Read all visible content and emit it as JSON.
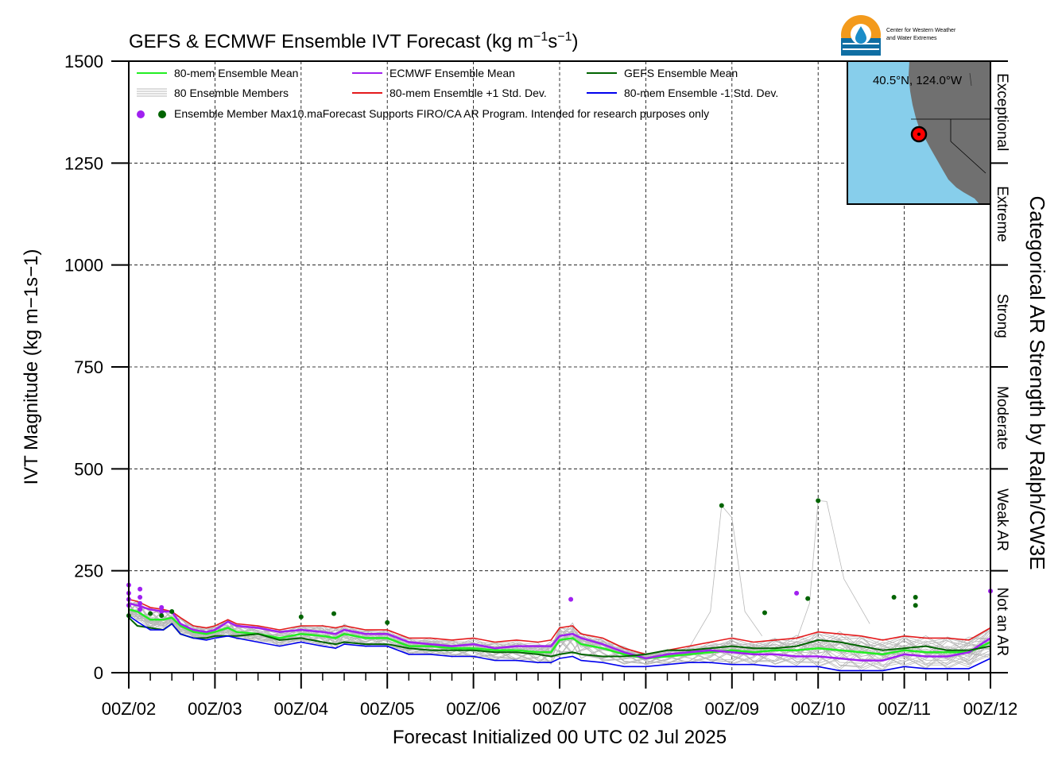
{
  "title_prefix": "GEFS & ECMWF Ensemble IVT Forecast (kg m",
  "title_exp1": "−1",
  "title_mid": "s",
  "title_exp2": "−1",
  "title_suffix": ")",
  "logo_line1": "Center for Western Weather",
  "logo_line2": "and Water Extremes",
  "map_label": "40.5°N, 124.0°W",
  "colors": {
    "ensemble_mean": "#22ee22",
    "ecmwf_mean": "#a020f0",
    "gefs_mean": "#006400",
    "plus_std": "#e41a1c",
    "minus_std": "#0000ee",
    "members": "#b8b8b8",
    "ocean": "#87ceeb",
    "land": "#707070"
  },
  "legend": {
    "ensemble_mean": "80-mem Ensemble Mean",
    "ecmwf_mean": "ECMWF Ensemble Mean",
    "gefs_mean": "GEFS Ensemble Mean",
    "members": "80 Ensemble Members",
    "plus_std": "80-mem Ensemble +1 Std. Dev.",
    "minus_std": "80-mem Ensemble -1 Std. Dev.",
    "max_points": "Ensemble Member Max10.maForecast Supports FIRO/CA AR Program. Intended for research purposes only"
  },
  "categories": [
    "Exceptional",
    "Extreme",
    "Strong",
    "Moderate",
    "Weak AR",
    "Not an AR"
  ],
  "chart_data": {
    "type": "line",
    "title": "GEFS & ECMWF Ensemble IVT Forecast (kg m−1s−1)",
    "xlabel": "Forecast Initialized 00 UTC 02 Jul 2025",
    "ylabel": "IVT Magnitude (kg m−1s−1)",
    "right_label": "Categorical AR Strength by Ralph/CW3E",
    "ylim": [
      0,
      1500
    ],
    "yticks": [
      "0",
      "250",
      "500",
      "750",
      "1000",
      "1250",
      "1500"
    ],
    "xticks": [
      "00Z/02",
      "00Z/03",
      "00Z/04",
      "00Z/05",
      "00Z/06",
      "00Z/07",
      "00Z/08",
      "00Z/09",
      "00Z/10",
      "00Z/11",
      "00Z/12"
    ],
    "x_unit": "day of July 2025 (fractional)",
    "grid": true,
    "series": [
      {
        "name": "80-mem Ensemble +1 Std. Dev.",
        "x": [
          2.0,
          2.1,
          2.25,
          2.4,
          2.5,
          2.6,
          2.75,
          2.9,
          3.0,
          3.15,
          3.25,
          3.5,
          3.75,
          4.0,
          4.25,
          4.4,
          4.5,
          4.75,
          5.0,
          5.25,
          5.5,
          5.75,
          6.0,
          6.25,
          6.5,
          6.75,
          6.9,
          7.0,
          7.15,
          7.25,
          7.5,
          7.75,
          8.0,
          8.25,
          8.5,
          8.75,
          9.0,
          9.25,
          9.5,
          9.75,
          10.0,
          10.25,
          10.5,
          10.75,
          11.0,
          11.25,
          11.5,
          11.75,
          12.0
        ],
        "values": [
          180,
          175,
          160,
          155,
          150,
          135,
          115,
          110,
          115,
          130,
          120,
          115,
          105,
          115,
          115,
          110,
          115,
          105,
          105,
          85,
          85,
          80,
          85,
          75,
          80,
          75,
          80,
          110,
          115,
          95,
          85,
          60,
          45,
          55,
          65,
          75,
          85,
          75,
          80,
          85,
          100,
          95,
          90,
          80,
          90,
          85,
          85,
          80,
          110
        ]
      },
      {
        "name": "80-mem Ensemble Mean",
        "x": [
          2.0,
          2.1,
          2.25,
          2.4,
          2.5,
          2.6,
          2.75,
          2.9,
          3.0,
          3.15,
          3.25,
          3.5,
          3.75,
          4.0,
          4.25,
          4.4,
          4.5,
          4.75,
          5.0,
          5.25,
          5.5,
          5.75,
          6.0,
          6.25,
          6.5,
          6.75,
          6.9,
          7.0,
          7.15,
          7.25,
          7.5,
          7.75,
          8.0,
          8.25,
          8.5,
          8.75,
          9.0,
          9.25,
          9.5,
          9.75,
          10.0,
          10.25,
          10.5,
          10.75,
          11.0,
          11.25,
          11.5,
          11.75,
          12.0
        ],
        "values": [
          155,
          150,
          130,
          130,
          135,
          115,
          100,
          95,
          100,
          110,
          100,
          95,
          85,
          95,
          90,
          85,
          95,
          85,
          85,
          65,
          65,
          60,
          60,
          55,
          55,
          50,
          50,
          80,
          85,
          70,
          60,
          45,
          35,
          40,
          45,
          50,
          55,
          50,
          55,
          55,
          60,
          55,
          50,
          45,
          55,
          50,
          50,
          50,
          75
        ]
      },
      {
        "name": "ECMWF Ensemble Mean",
        "x": [
          2.0,
          2.1,
          2.25,
          2.4,
          2.5,
          2.6,
          2.75,
          2.9,
          3.0,
          3.15,
          3.25,
          3.5,
          3.75,
          4.0,
          4.25,
          4.4,
          4.5,
          4.75,
          5.0,
          5.25,
          5.5,
          5.75,
          6.0,
          6.25,
          6.5,
          6.75,
          6.9,
          7.0,
          7.15,
          7.25,
          7.5,
          7.75,
          8.0,
          8.25,
          8.5,
          8.75,
          9.0,
          9.25,
          9.5,
          9.75,
          10.0,
          10.25,
          10.5,
          10.75,
          11.0,
          11.25,
          11.5,
          11.75,
          12.0
        ],
        "values": [
          170,
          165,
          155,
          150,
          150,
          120,
          105,
          100,
          105,
          125,
          115,
          110,
          100,
          105,
          100,
          95,
          105,
          95,
          95,
          75,
          70,
          65,
          70,
          60,
          65,
          65,
          65,
          90,
          95,
          85,
          70,
          50,
          35,
          45,
          50,
          55,
          50,
          45,
          45,
          40,
          40,
          35,
          30,
          30,
          45,
          40,
          40,
          50,
          85
        ]
      },
      {
        "name": "GEFS Ensemble Mean",
        "x": [
          2.0,
          2.1,
          2.25,
          2.4,
          2.5,
          2.6,
          2.75,
          2.9,
          3.0,
          3.15,
          3.25,
          3.5,
          3.75,
          4.0,
          4.25,
          4.4,
          4.5,
          4.75,
          5.0,
          5.25,
          5.5,
          5.75,
          6.0,
          6.25,
          6.5,
          6.75,
          6.9,
          7.0,
          7.15,
          7.25,
          7.5,
          7.75,
          8.0,
          8.25,
          8.5,
          8.75,
          9.0,
          9.25,
          9.5,
          9.75,
          10.0,
          10.25,
          10.5,
          10.75,
          11.0,
          11.25,
          11.5,
          11.75,
          12.0
        ],
        "values": [
          135,
          115,
          110,
          105,
          120,
          95,
          85,
          85,
          90,
          90,
          90,
          95,
          80,
          85,
          75,
          70,
          75,
          70,
          70,
          60,
          55,
          55,
          55,
          50,
          50,
          45,
          40,
          45,
          50,
          45,
          40,
          40,
          45,
          55,
          55,
          60,
          65,
          60,
          60,
          65,
          80,
          75,
          65,
          55,
          60,
          65,
          55,
          55,
          65
        ]
      },
      {
        "name": "80-mem Ensemble -1 Std. Dev.",
        "x": [
          2.0,
          2.1,
          2.25,
          2.4,
          2.5,
          2.6,
          2.75,
          2.9,
          3.0,
          3.15,
          3.25,
          3.5,
          3.75,
          4.0,
          4.25,
          4.4,
          4.5,
          4.75,
          5.0,
          5.25,
          5.5,
          5.75,
          6.0,
          6.25,
          6.5,
          6.75,
          6.9,
          7.0,
          7.15,
          7.25,
          7.5,
          7.75,
          8.0,
          8.25,
          8.5,
          8.75,
          9.0,
          9.25,
          9.5,
          9.75,
          10.0,
          10.25,
          10.5,
          10.75,
          11.0,
          11.25,
          11.5,
          11.75,
          12.0
        ],
        "values": [
          140,
          125,
          105,
          105,
          120,
          95,
          85,
          80,
          85,
          90,
          85,
          75,
          65,
          75,
          65,
          60,
          70,
          65,
          65,
          45,
          45,
          40,
          40,
          30,
          30,
          25,
          25,
          35,
          40,
          30,
          25,
          15,
          15,
          20,
          25,
          25,
          20,
          20,
          15,
          15,
          15,
          5,
          5,
          5,
          15,
          10,
          10,
          10,
          35
        ]
      }
    ],
    "max_points": [
      {
        "model": "ECMWF",
        "x": 2.0,
        "value": 215
      },
      {
        "model": "ECMWF",
        "x": 2.0,
        "value": 195
      },
      {
        "model": "ECMWF",
        "x": 2.0,
        "value": 180
      },
      {
        "model": "ECMWF",
        "x": 2.0,
        "value": 165
      },
      {
        "model": "ECMWF",
        "x": 2.13,
        "value": 205
      },
      {
        "model": "ECMWF",
        "x": 2.13,
        "value": 185
      },
      {
        "model": "ECMWF",
        "x": 2.13,
        "value": 170
      },
      {
        "model": "ECMWF",
        "x": 2.13,
        "value": 155
      },
      {
        "model": "ECMWF",
        "x": 2.38,
        "value": 160
      },
      {
        "model": "ECMWF",
        "x": 2.38,
        "value": 150
      },
      {
        "model": "ECMWF",
        "x": 7.13,
        "value": 180
      },
      {
        "model": "ECMWF",
        "x": 9.75,
        "value": 195
      },
      {
        "model": "ECMWF",
        "x": 12.0,
        "value": 200
      },
      {
        "model": "GEFS",
        "x": 2.0,
        "value": 140
      },
      {
        "model": "GEFS",
        "x": 2.25,
        "value": 145
      },
      {
        "model": "GEFS",
        "x": 2.38,
        "value": 140
      },
      {
        "model": "GEFS",
        "x": 2.5,
        "value": 150
      },
      {
        "model": "GEFS",
        "x": 4.0,
        "value": 137
      },
      {
        "model": "GEFS",
        "x": 4.38,
        "value": 145
      },
      {
        "model": "GEFS",
        "x": 5.0,
        "value": 123
      },
      {
        "model": "GEFS",
        "x": 8.88,
        "value": 410
      },
      {
        "model": "GEFS",
        "x": 9.38,
        "value": 147
      },
      {
        "model": "GEFS",
        "x": 9.88,
        "value": 182
      },
      {
        "model": "GEFS",
        "x": 10.0,
        "value": 422
      },
      {
        "model": "GEFS",
        "x": 10.88,
        "value": 185
      },
      {
        "model": "GEFS",
        "x": 11.13,
        "value": 185
      },
      {
        "model": "GEFS",
        "x": 11.13,
        "value": 165
      }
    ]
  }
}
